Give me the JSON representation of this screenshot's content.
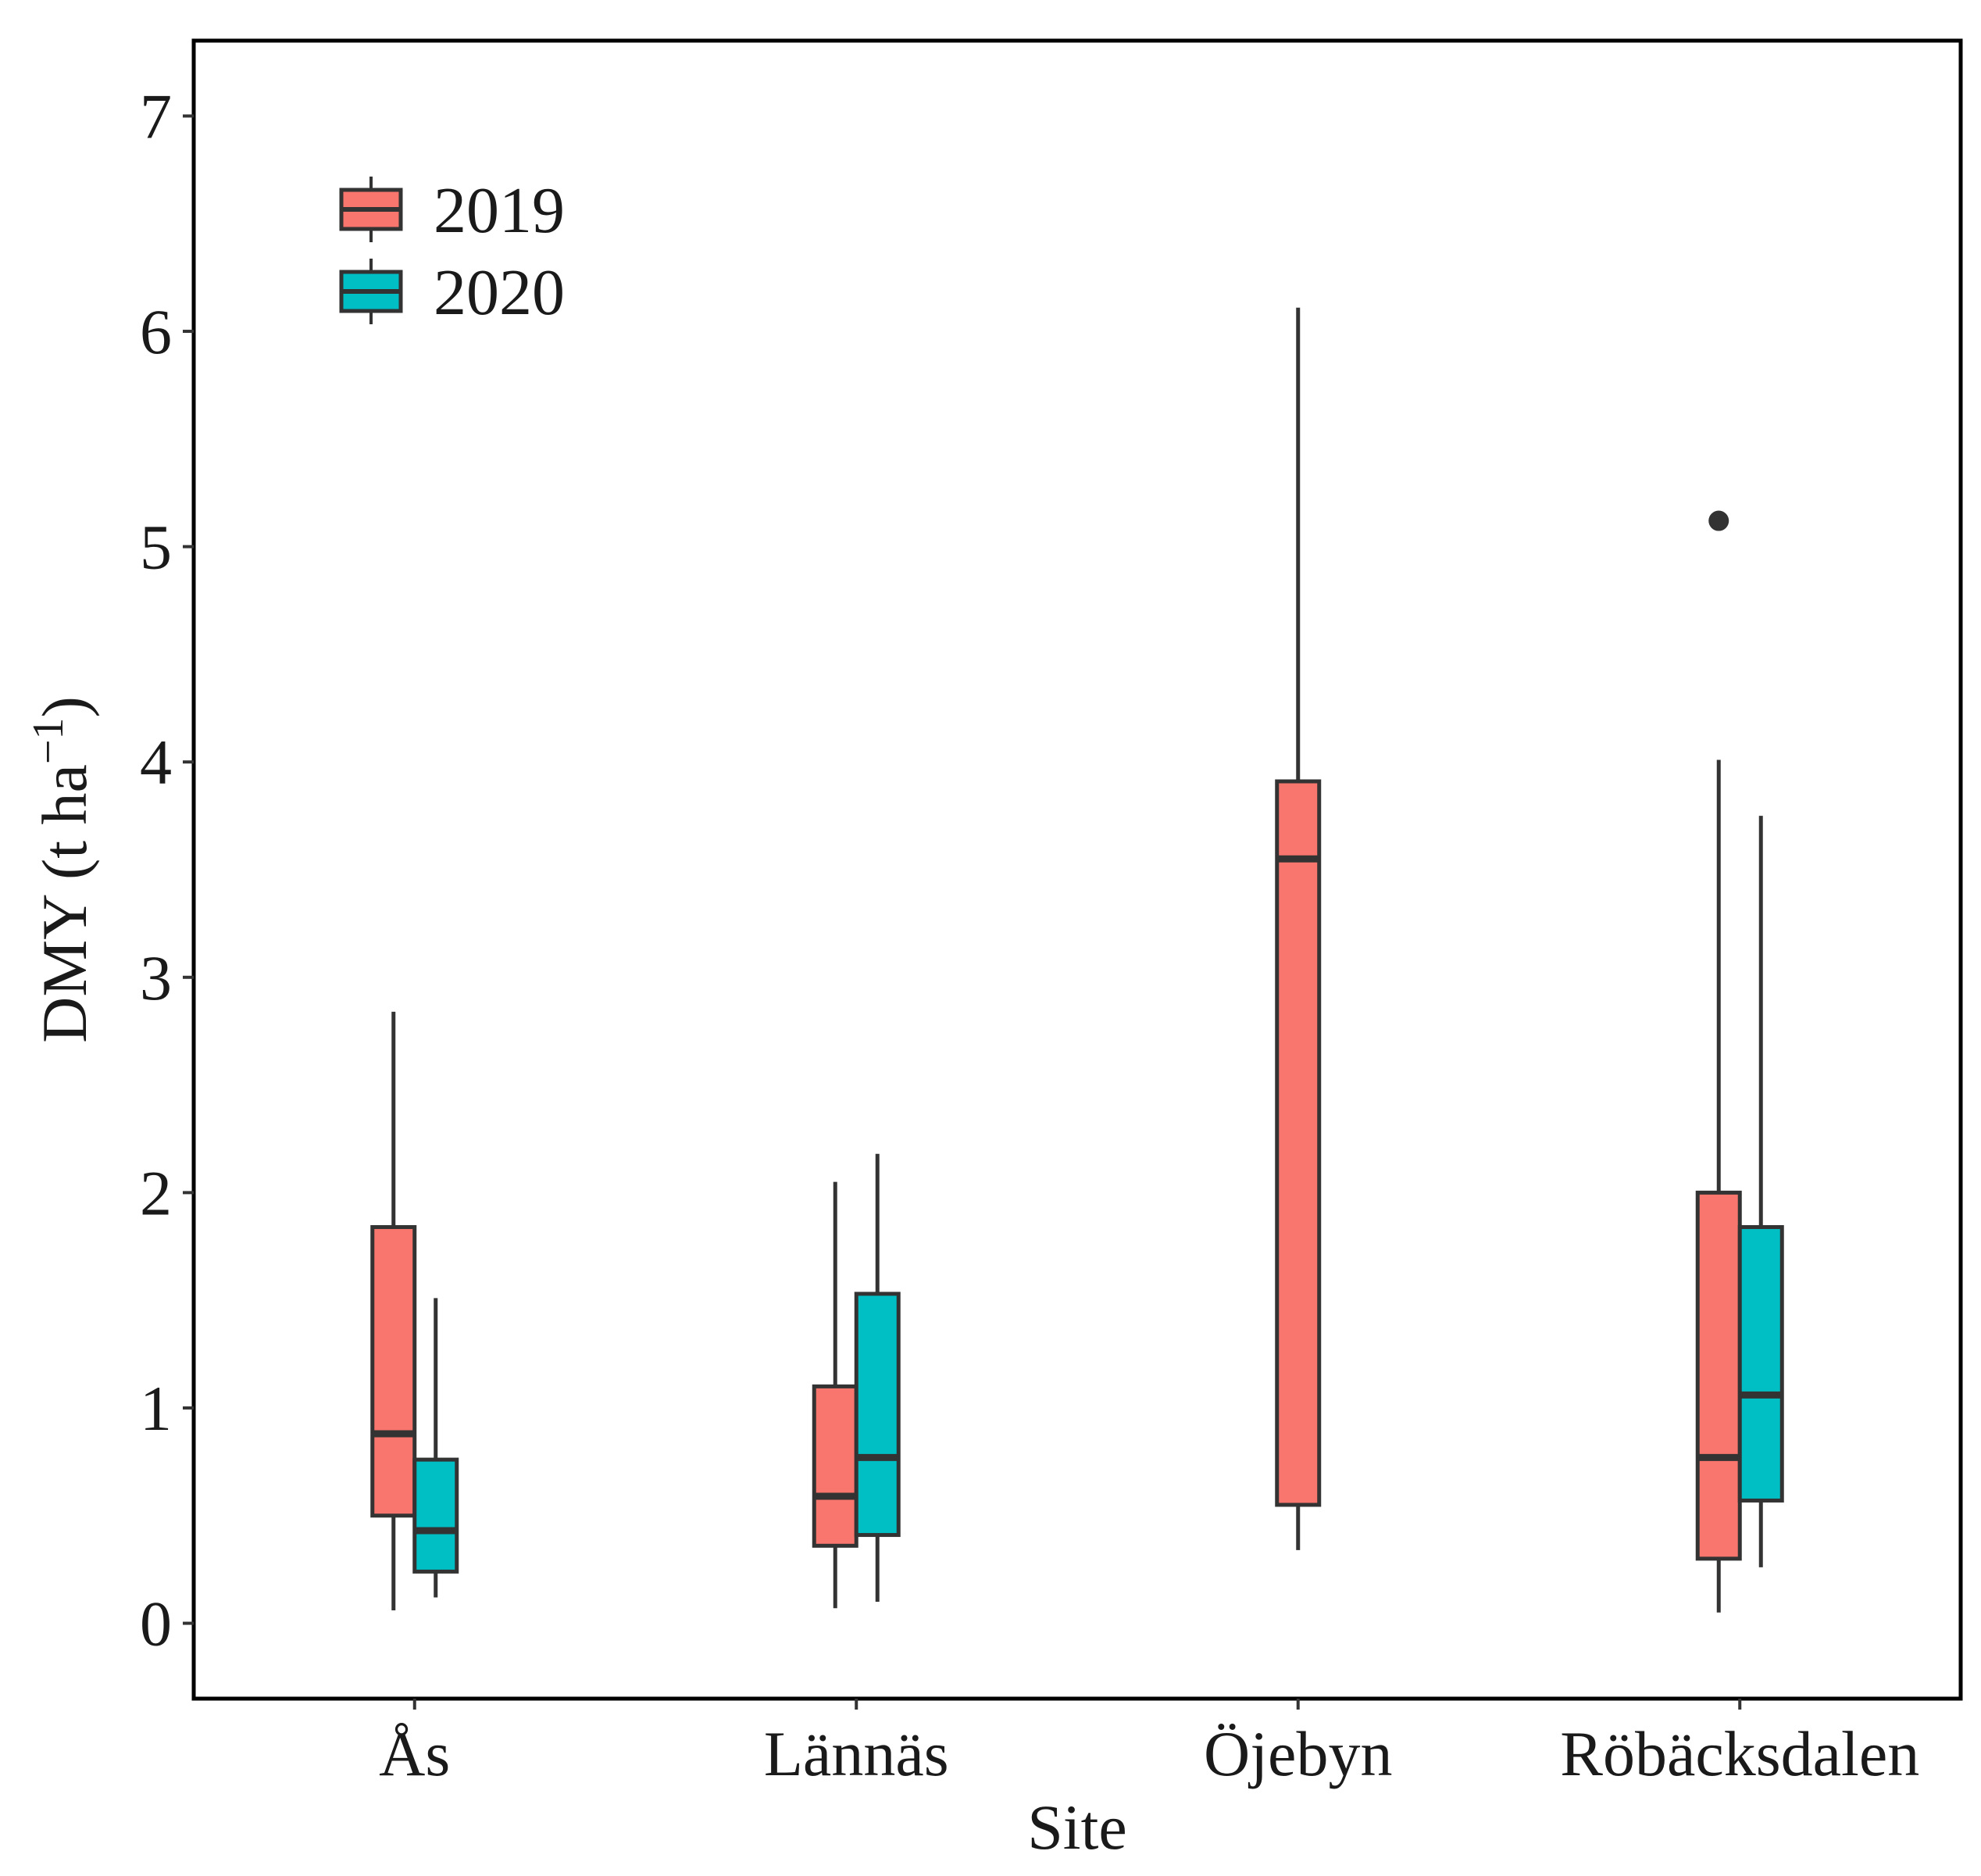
{
  "chart_data": {
    "type": "boxplot",
    "xlabel": "Site",
    "ylabel": "DMY (t ha",
    "ylabel_sup": "−1",
    "ylabel_close": ")",
    "ylim": [
      -0.35,
      7.35
    ],
    "yticks": [
      0,
      1,
      2,
      3,
      4,
      5,
      6,
      7
    ],
    "ytick_labels": [
      "0",
      "1",
      "2",
      "3",
      "4",
      "5",
      "6",
      "7"
    ],
    "grid": false,
    "legend_position": "top-left",
    "categories": [
      "Ås",
      "Lännäs",
      "Öjebyn",
      "Röbäcksdalen"
    ],
    "series": [
      {
        "name": "2019",
        "color": "#F8766D",
        "boxes": [
          {
            "category": "Ås",
            "whisker_low": 0.06,
            "q1": 0.5,
            "median": 0.88,
            "q3": 1.84,
            "whisker_high": 2.84,
            "outliers": []
          },
          {
            "category": "Lännäs",
            "whisker_low": 0.07,
            "q1": 0.36,
            "median": 0.59,
            "q3": 1.1,
            "whisker_high": 2.05,
            "outliers": []
          },
          {
            "category": "Öjebyn",
            "whisker_low": 0.34,
            "q1": 0.55,
            "median": 3.55,
            "q3": 3.91,
            "whisker_high": 6.11,
            "outliers": []
          },
          {
            "category": "Röbäcksdalen",
            "whisker_low": 0.05,
            "q1": 0.3,
            "median": 0.77,
            "q3": 2.0,
            "whisker_high": 4.01,
            "outliers": [
              5.12
            ]
          }
        ]
      },
      {
        "name": "2020",
        "color": "#00BFC4",
        "boxes": [
          {
            "category": "Ås",
            "whisker_low": 0.12,
            "q1": 0.24,
            "median": 0.43,
            "q3": 0.76,
            "whisker_high": 1.51,
            "outliers": []
          },
          {
            "category": "Lännäs",
            "whisker_low": 0.1,
            "q1": 0.41,
            "median": 0.77,
            "q3": 1.53,
            "whisker_high": 2.18,
            "outliers": []
          },
          {
            "category": "Röbäcksdalen",
            "whisker_low": 0.26,
            "q1": 0.57,
            "median": 1.06,
            "q3": 1.84,
            "whisker_high": 3.75,
            "outliers": []
          }
        ]
      }
    ]
  }
}
